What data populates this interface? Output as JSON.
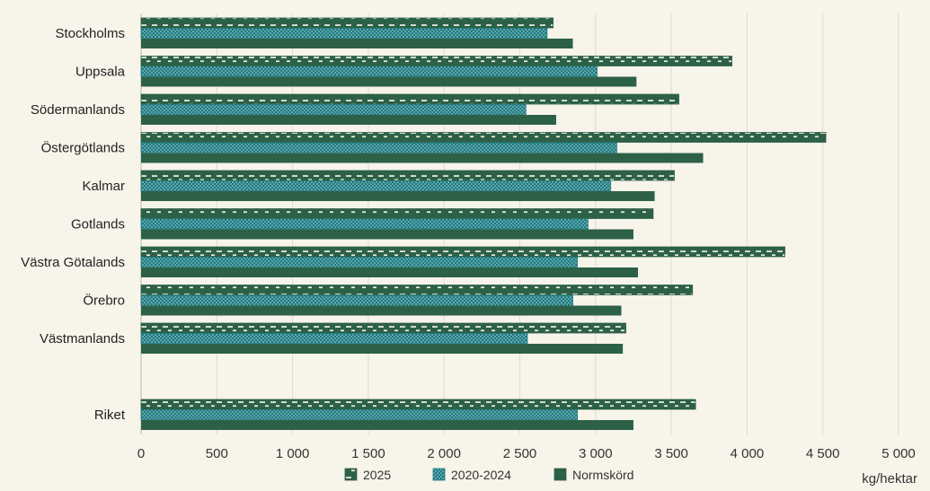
{
  "chart_data": {
    "type": "bar",
    "orientation": "horizontal",
    "categories": [
      "Stockholms",
      "Uppsala",
      "Södermanlands",
      "Östergötlands",
      "Kalmar",
      "Gotlands",
      "Västra Götalands",
      "Örebro",
      "Västmanlands",
      "",
      "Riket"
    ],
    "series": [
      {
        "name": "2025",
        "values": [
          2720,
          3900,
          3550,
          4520,
          3520,
          3380,
          4250,
          3640,
          3200,
          null,
          3660
        ],
        "color": "#2c6147",
        "pattern": "dashed"
      },
      {
        "name": "2020-2024",
        "values": [
          2680,
          3010,
          2540,
          3140,
          3100,
          2950,
          2880,
          2850,
          2550,
          null,
          2880
        ],
        "color": "#1d7a82",
        "pattern": "dotted"
      },
      {
        "name": "Normskörd",
        "values": [
          2850,
          3270,
          2740,
          3710,
          3390,
          3250,
          3280,
          3170,
          3180,
          null,
          3250
        ],
        "color": "#2c6147",
        "pattern": "solid"
      }
    ],
    "xlim": [
      0,
      5000
    ],
    "ticks": [
      0,
      500,
      1000,
      1500,
      2000,
      2500,
      3000,
      3500,
      4000,
      4500,
      5000
    ],
    "tick_labels": [
      "0",
      "500",
      "1 000",
      "1 500",
      "2 000",
      "2 500",
      "3 000",
      "3 500",
      "4 000",
      "4 500",
      "5 000"
    ],
    "unit_label": "kg/hektar",
    "grid": true,
    "legend_position": "bottom"
  }
}
